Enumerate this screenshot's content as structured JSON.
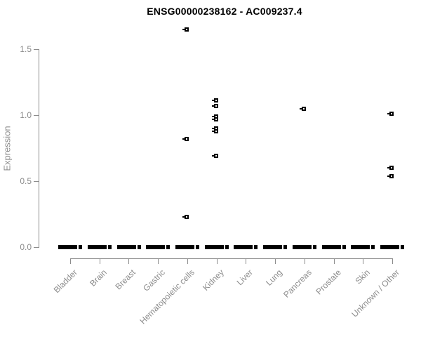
{
  "chart_data": {
    "type": "scatter",
    "title": "ENSG00000238162 - AC009237.4",
    "xlabel": "",
    "ylabel": "Expression",
    "ylim": [
      0,
      1.7
    ],
    "y_ticks": [
      0.0,
      0.5,
      1.0,
      1.5
    ],
    "y_tick_labels": [
      "0.0",
      "0.5",
      "1.0",
      "1.5"
    ],
    "grid": false,
    "legend": "none",
    "categories": [
      "Bladder",
      "Brain",
      "Breast",
      "Gastric",
      "Hematopoietic cells",
      "Kidney",
      "Liver",
      "Lung",
      "Pancreas",
      "Prostate",
      "Skin",
      "Unknown / Other"
    ],
    "series": [
      {
        "name": "Bladder",
        "zero_cluster": true,
        "points": []
      },
      {
        "name": "Brain",
        "zero_cluster": true,
        "points": []
      },
      {
        "name": "Breast",
        "zero_cluster": true,
        "points": []
      },
      {
        "name": "Gastric",
        "zero_cluster": true,
        "points": []
      },
      {
        "name": "Hematopoietic cells",
        "zero_cluster": true,
        "points": [
          1.65,
          0.82,
          0.23
        ]
      },
      {
        "name": "Kidney",
        "zero_cluster": true,
        "points": [
          1.11,
          1.07,
          0.99,
          0.97,
          0.9,
          0.88,
          0.69
        ]
      },
      {
        "name": "Liver",
        "zero_cluster": true,
        "points": []
      },
      {
        "name": "Lung",
        "zero_cluster": true,
        "points": []
      },
      {
        "name": "Pancreas",
        "zero_cluster": true,
        "points": [
          1.05
        ]
      },
      {
        "name": "Prostate",
        "zero_cluster": true,
        "points": []
      },
      {
        "name": "Skin",
        "zero_cluster": true,
        "points": []
      },
      {
        "name": "Unknown / Other",
        "zero_cluster": true,
        "points": [
          1.01,
          0.6,
          0.54
        ]
      }
    ]
  },
  "colors": {
    "marker": "#000000",
    "axis": "#8c8c8c",
    "tick_label": "#8c8c8c",
    "title": "#000000",
    "background": "#ffffff"
  }
}
